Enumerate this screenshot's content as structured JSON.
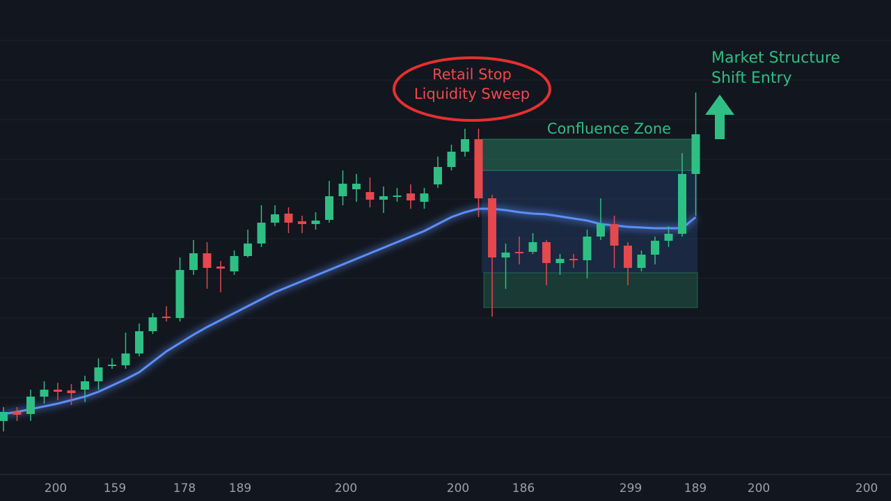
{
  "chart_data": {
    "type": "candlestick",
    "ylim": [
      0,
      680
    ],
    "up_color": "#2fbf84",
    "down_color": "#e5484d",
    "ma_color": "#5b8ff9",
    "open": [
      75,
      88,
      85,
      110,
      120,
      119,
      120,
      132,
      154,
      155,
      172,
      204,
      225,
      223,
      292,
      316,
      297,
      290,
      312,
      330,
      360,
      373,
      362,
      358,
      364,
      398,
      408,
      404,
      393,
      398,
      402,
      390,
      415,
      440,
      462,
      480,
      395,
      310,
      318,
      318,
      332,
      302,
      308,
      306,
      340,
      358,
      327,
      295,
      314,
      334,
      344,
      430
    ],
    "high": [
      95,
      95,
      120,
      132,
      130,
      128,
      140,
      165,
      165,
      202,
      215,
      230,
      240,
      310,
      335,
      332,
      305,
      320,
      350,
      385,
      385,
      382,
      370,
      375,
      420,
      435,
      430,
      425,
      412,
      410,
      415,
      410,
      455,
      472,
      495,
      495,
      400,
      330,
      340,
      345,
      335,
      315,
      315,
      350,
      395,
      370,
      332,
      320,
      340,
      355,
      460,
      547
    ],
    "low": [
      60,
      75,
      75,
      100,
      105,
      98,
      102,
      120,
      150,
      150,
      168,
      200,
      218,
      218,
      285,
      265,
      260,
      285,
      310,
      325,
      355,
      345,
      345,
      350,
      360,
      385,
      390,
      382,
      374,
      390,
      380,
      380,
      410,
      435,
      455,
      368,
      225,
      265,
      300,
      315,
      270,
      285,
      295,
      280,
      335,
      295,
      270,
      290,
      300,
      325,
      340,
      370
    ],
    "close": [
      88,
      84,
      110,
      120,
      117,
      115,
      132,
      152,
      156,
      172,
      204,
      224,
      223,
      292,
      316,
      295,
      294,
      312,
      330,
      360,
      372,
      360,
      358,
      363,
      398,
      416,
      416,
      393,
      398,
      399,
      392,
      402,
      440,
      462,
      480,
      395,
      310,
      317,
      316,
      332,
      302,
      308,
      306,
      340,
      358,
      327,
      295,
      314,
      334,
      344,
      430,
      487
    ],
    "ma": [
      85,
      88,
      92,
      96,
      100,
      105,
      110,
      117,
      126,
      135,
      145,
      160,
      175,
      187,
      199,
      210,
      220,
      230,
      240,
      250,
      260,
      268,
      276,
      284,
      292,
      300,
      308,
      316,
      324,
      332,
      340,
      348,
      358,
      368,
      375,
      380,
      380,
      378,
      375,
      373,
      372,
      369,
      366,
      363,
      358,
      356,
      354,
      353,
      352,
      352,
      352,
      368
    ],
    "x_labels": [
      "200",
      "159",
      "178",
      "189",
      "200",
      "200",
      "186",
      "299",
      "189",
      "200",
      "200"
    ],
    "annotations": {
      "sweep": [
        "Retail Stop",
        "Liquidity Sweep"
      ],
      "zone": "Confluence Zone",
      "entry": [
        "Market Structure",
        "Shift Entry"
      ]
    }
  }
}
